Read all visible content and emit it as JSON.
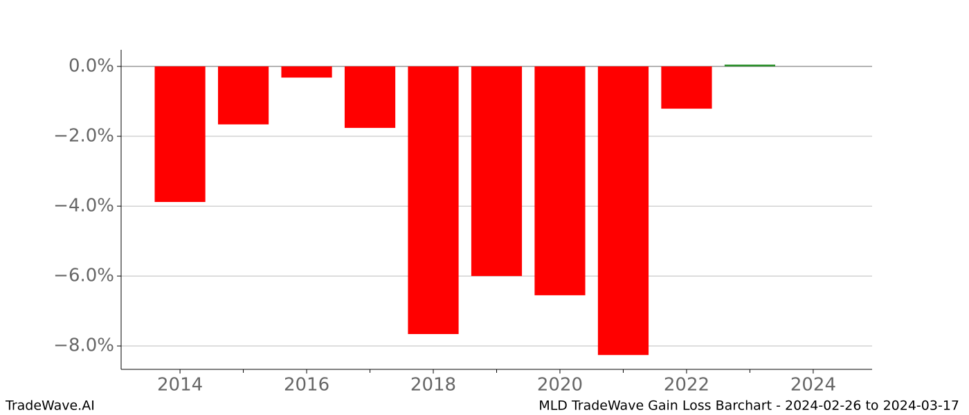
{
  "chart_data": {
    "type": "bar",
    "x": [
      2014,
      2015,
      2016,
      2017,
      2018,
      2019,
      2020,
      2021,
      2022,
      2023
    ],
    "values": [
      -3.88,
      -1.66,
      -0.32,
      -1.76,
      -7.66,
      -6.0,
      -6.55,
      -8.26,
      -1.21,
      0.05
    ],
    "color_negative": "#ff0000",
    "color_positive": "#228b22",
    "xlim": [
      2013.07,
      2024.93
    ],
    "xticks": [
      2014,
      2016,
      2018,
      2020,
      2022,
      2024
    ],
    "xminorticks": [
      2015,
      2017,
      2019,
      2021,
      2023
    ],
    "ylim": [
      -8.67,
      0.475
    ],
    "yticks": [
      {
        "value": 0,
        "label": "0.0%"
      },
      {
        "value": -2,
        "label": "−2.0%"
      },
      {
        "value": -4,
        "label": "−4.0%"
      },
      {
        "value": -6,
        "label": "−6.0%"
      },
      {
        "value": -8,
        "label": "−8.0%"
      }
    ],
    "grid": true
  },
  "footer": {
    "left": "TradeWave.AI",
    "right": "MLD TradeWave Gain Loss Barchart - 2024-02-26 to 2024-03-17"
  }
}
